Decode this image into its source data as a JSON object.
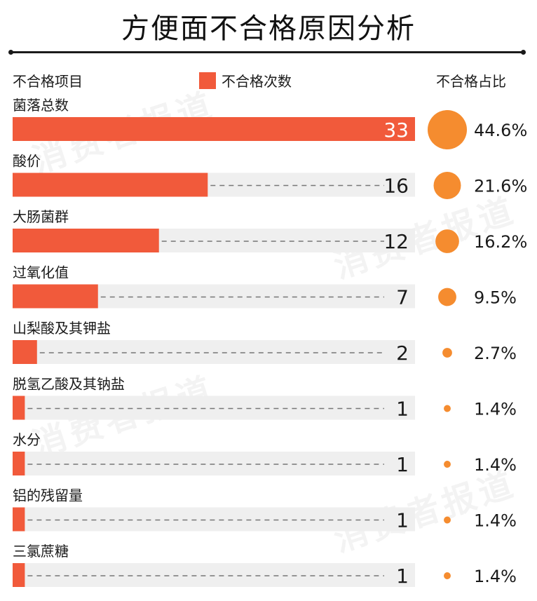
{
  "title": "方便面不合格原因分析",
  "header": {
    "item_label": "不合格项目",
    "legend_label": "不合格次数",
    "share_label": "不合格占比"
  },
  "watermark": "消费者报道",
  "colors": {
    "bar": "#f15a3b",
    "track": "#efefef",
    "bubble": "#f58c2f",
    "dash": "#777777"
  },
  "chart_data": {
    "type": "bar",
    "orientation": "horizontal",
    "categories": [
      "菌落总数",
      "酸价",
      "大肠菌群",
      "过氧化值",
      "山梨酸及其钾盐",
      "脱氢乙酸及其钠盐",
      "水分",
      "铝的残留量",
      "三氯蔗糖"
    ],
    "series": [
      {
        "name": "不合格次数",
        "values": [
          33,
          16,
          12,
          7,
          2,
          1,
          1,
          1,
          1
        ]
      }
    ],
    "share": [
      "44.6%",
      "21.6%",
      "16.2%",
      "9.5%",
      "2.7%",
      "1.4%",
      "1.4%",
      "1.4%",
      "1.4%"
    ],
    "share_values": [
      44.6,
      21.6,
      16.2,
      9.5,
      2.7,
      1.4,
      1.4,
      1.4,
      1.4
    ],
    "xlim": [
      0,
      33
    ],
    "legend": "top",
    "grid": false
  }
}
